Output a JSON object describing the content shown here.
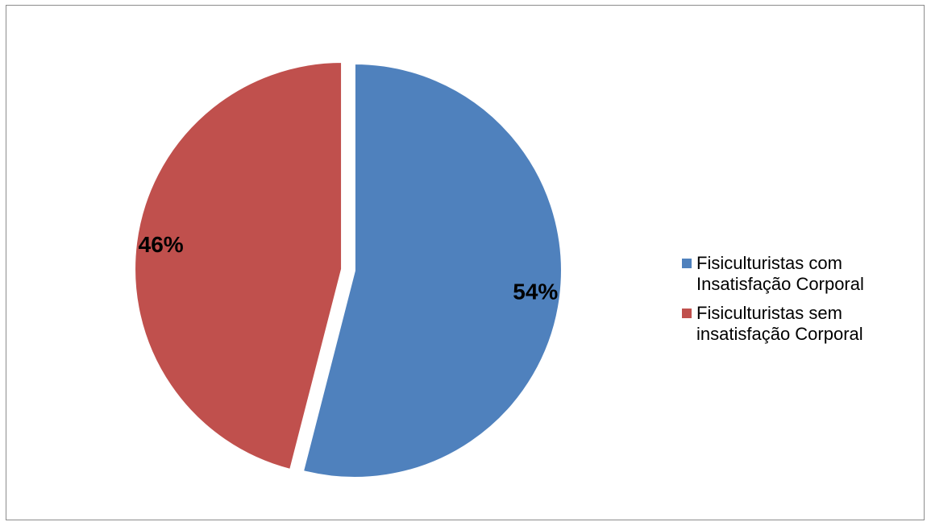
{
  "chart_data": {
    "type": "pie",
    "title": "",
    "slices": [
      {
        "label": "Fisiculturistas com Insatisfação Corporal",
        "legend_lines": "Fisiculturistas com\nInsatisfação Corporal",
        "value": 54,
        "display": "54%",
        "color": "#4F81BD"
      },
      {
        "label": "Fisiculturistas sem insatisfação Corporal",
        "legend_lines": "Fisiculturistas sem\ninsatisfação Corporal",
        "value": 46,
        "display": "46%",
        "color": "#C0504D"
      }
    ],
    "legend_position": "right",
    "start_angle_deg": 0,
    "exploded": true
  }
}
